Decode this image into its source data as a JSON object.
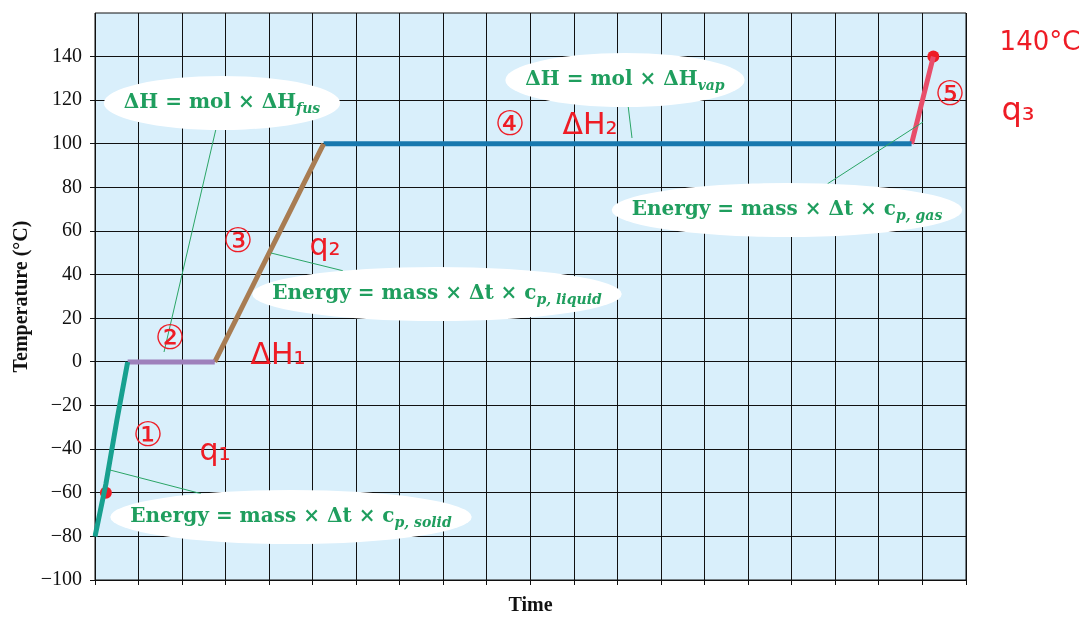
{
  "chart_data": {
    "type": "line",
    "xlabel": "Time",
    "ylabel": "Temperature (°C)",
    "categories": [
      null,
      null,
      null,
      null,
      null,
      null,
      null,
      null,
      null,
      null,
      null,
      null,
      null,
      null,
      null,
      null,
      null,
      null,
      null,
      null,
      null,
      null,
      null,
      null,
      null,
      null,
      null,
      null,
      null,
      null,
      null,
      null,
      null,
      null,
      null,
      null,
      null,
      null,
      null,
      null,
      null,
      null,
      null,
      null,
      null,
      null,
      null,
      null,
      null,
      null,
      null,
      null,
      null,
      null,
      null,
      null,
      null,
      null,
      null,
      null,
      null,
      null,
      null,
      null,
      null,
      null,
      null,
      null,
      null,
      null,
      null,
      null,
      null,
      null,
      null,
      null,
      null,
      null,
      null,
      null,
      null
    ],
    "ylim": [
      -100,
      160
    ],
    "yticks": [
      {
        "value": -100,
        "label": "−100"
      },
      {
        "value": -80,
        "label": "−80"
      },
      {
        "value": -60,
        "label": "−60"
      },
      {
        "value": -40,
        "label": "−40"
      },
      {
        "value": -20,
        "label": "−20"
      },
      0,
      20,
      40,
      60,
      80,
      100,
      120,
      140
    ],
    "grid": true,
    "series": [
      {
        "color": "#17a08f",
        "values": [
          -80,
          -56,
          -27,
          0,
          null,
          null,
          null,
          null,
          null,
          null,
          null,
          null,
          null,
          null,
          null,
          null,
          null,
          null,
          null,
          null,
          null,
          null,
          null,
          null,
          null,
          null,
          null,
          null,
          null,
          null,
          null,
          null,
          null,
          null,
          null,
          null,
          null,
          null,
          null,
          null,
          null,
          null,
          null,
          null,
          null,
          null,
          null,
          null,
          null,
          null,
          null,
          null,
          null,
          null,
          null,
          null,
          null,
          null,
          null,
          null,
          null,
          null,
          null,
          null,
          null,
          null,
          null,
          null,
          null,
          null,
          null,
          null,
          null,
          null,
          null,
          null,
          null,
          null,
          null,
          null,
          null
        ]
      },
      {
        "color": "#9e80bb",
        "values": [
          null,
          null,
          null,
          0,
          0,
          0,
          0,
          0,
          0,
          0,
          0,
          0,
          null,
          null,
          null,
          null,
          null,
          null,
          null,
          null,
          null,
          null,
          null,
          null,
          null,
          null,
          null,
          null,
          null,
          null,
          null,
          null,
          null,
          null,
          null,
          null,
          null,
          null,
          null,
          null,
          null,
          null,
          null,
          null,
          null,
          null,
          null,
          null,
          null,
          null,
          null,
          null,
          null,
          null,
          null,
          null,
          null,
          null,
          null,
          null,
          null,
          null,
          null,
          null,
          null,
          null,
          null,
          null,
          null,
          null,
          null,
          null,
          null,
          null,
          null,
          null,
          null,
          null,
          null,
          null,
          null
        ]
      },
      {
        "color": "#a87c52",
        "values": [
          null,
          null,
          null,
          null,
          null,
          null,
          null,
          null,
          null,
          null,
          null,
          0,
          10,
          20,
          30,
          40,
          50,
          60,
          70,
          80,
          90,
          100,
          null,
          null,
          null,
          null,
          null,
          null,
          null,
          null,
          null,
          null,
          null,
          null,
          null,
          null,
          null,
          null,
          null,
          null,
          null,
          null,
          null,
          null,
          null,
          null,
          null,
          null,
          null,
          null,
          null,
          null,
          null,
          null,
          null,
          null,
          null,
          null,
          null,
          null,
          null,
          null,
          null,
          null,
          null,
          null,
          null,
          null,
          null,
          null,
          null,
          null,
          null,
          null,
          null,
          null,
          null,
          null,
          null,
          null,
          null
        ]
      },
      {
        "color": "#1878ae",
        "values": [
          null,
          null,
          null,
          null,
          null,
          null,
          null,
          null,
          null,
          null,
          null,
          null,
          null,
          null,
          null,
          null,
          null,
          null,
          null,
          null,
          null,
          100,
          100,
          100,
          100,
          100,
          100,
          100,
          100,
          100,
          100,
          100,
          100,
          100,
          100,
          100,
          100,
          100,
          100,
          100,
          100,
          100,
          100,
          100,
          100,
          100,
          100,
          100,
          100,
          100,
          100,
          100,
          100,
          100,
          100,
          100,
          100,
          100,
          100,
          100,
          100,
          100,
          100,
          100,
          100,
          100,
          100,
          100,
          100,
          100,
          100,
          100,
          100,
          100,
          100,
          100,
          null,
          null,
          null,
          null,
          null
        ]
      },
      {
        "color": "#e84d6a",
        "values": [
          null,
          null,
          null,
          null,
          null,
          null,
          null,
          null,
          null,
          null,
          null,
          null,
          null,
          null,
          null,
          null,
          null,
          null,
          null,
          null,
          null,
          null,
          null,
          null,
          null,
          null,
          null,
          null,
          null,
          null,
          null,
          null,
          null,
          null,
          null,
          null,
          null,
          null,
          null,
          null,
          null,
          null,
          null,
          null,
          null,
          null,
          null,
          null,
          null,
          null,
          null,
          null,
          null,
          null,
          null,
          null,
          null,
          null,
          null,
          null,
          null,
          null,
          null,
          null,
          null,
          null,
          null,
          null,
          null,
          null,
          null,
          null,
          null,
          null,
          null,
          100,
          120,
          140,
          null,
          null,
          null
        ]
      },
      {
        "type": "scatter",
        "marker": "circle",
        "color": "#ee1c25",
        "values": [
          null,
          -60,
          null,
          null,
          null,
          null,
          null,
          null,
          null,
          null,
          null,
          null,
          null,
          null,
          null,
          null,
          null,
          null,
          null,
          null,
          null,
          null,
          null,
          null,
          null,
          null,
          null,
          null,
          null,
          null,
          null,
          null,
          null,
          null,
          null,
          null,
          null,
          null,
          null,
          null,
          null,
          null,
          null,
          null,
          null,
          null,
          null,
          null,
          null,
          null,
          null,
          null,
          null,
          null,
          null,
          null,
          null,
          null,
          null,
          null,
          null,
          null,
          null,
          null,
          null,
          null,
          null,
          null,
          null,
          null,
          null,
          null,
          null,
          null,
          null,
          null,
          null,
          140,
          null,
          null,
          null
        ]
      }
    ],
    "annotations": [
      "ΔH = mol × ΔH$_{fus}$",
      "ΔH = mol × ΔH$_{vap}$",
      "Energy = mass × Δt × c$_{p, liquid}$",
      "Energy = mass × Δt × c$_{p, solid}$",
      "Energy = mass × Δt × c$_{p, gas}$",
      "①",
      "q₁",
      "②",
      "ΔH₁",
      "③",
      "q₂",
      "④",
      "ΔH₂",
      "⑤",
      "q₃",
      "140°C"
    ]
  }
}
